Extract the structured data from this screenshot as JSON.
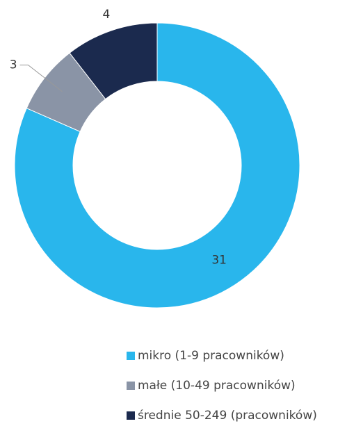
{
  "chart_data": {
    "type": "donut",
    "categories": [
      "mikro (1-9 pracowników)",
      "małe (10-49 pracowników)",
      "średnie 50-249 (pracowników)"
    ],
    "values": [
      31,
      3,
      4
    ],
    "colors": [
      "#29b6ec",
      "#8a94a6",
      "#1b2a4e"
    ],
    "legend": "bottom"
  }
}
